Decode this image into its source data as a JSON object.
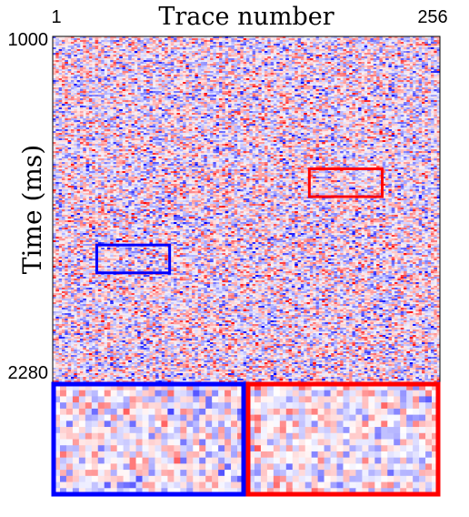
{
  "chart_data": {
    "type": "heatmap",
    "title": "Trace number",
    "xlabel": "Trace number",
    "ylabel": "Time (ms)",
    "x_ticks": [
      "1",
      "256"
    ],
    "y_ticks": [
      "1000",
      "2280"
    ],
    "xlim": [
      1,
      256
    ],
    "ylim": [
      1000,
      2280
    ],
    "colormap": "blue-white-red (seismic)",
    "colors": {
      "negative": "#0000ff",
      "zero": "#ffffff",
      "positive": "#ff0000"
    },
    "content": "random noise traces",
    "highlight_boxes": [
      {
        "name": "blue-window",
        "color": "#0000ff",
        "trace_range": [
          30,
          78
        ],
        "time_range": [
          1772,
          1875
        ]
      },
      {
        "name": "red-window",
        "color": "#ff0000",
        "trace_range": [
          170,
          218
        ],
        "time_range": [
          1490,
          1593
        ]
      }
    ],
    "insets": [
      {
        "name": "blue-zoom",
        "color": "#0000ff",
        "source": "blue-window"
      },
      {
        "name": "red-zoom",
        "color": "#ff0000",
        "source": "red-window"
      }
    ]
  }
}
